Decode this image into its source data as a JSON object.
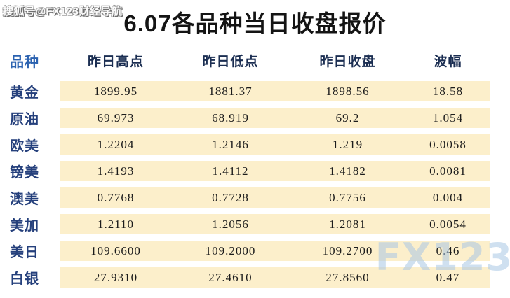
{
  "watermarks": {
    "sohu": "搜狐号@FX123财经导航",
    "logo": "FX123"
  },
  "title": "6.07各品种当日收盘报价",
  "chart_data": {
    "type": "table",
    "title": "6.07各品种当日收盘报价",
    "columns": [
      "品种",
      "昨日高点",
      "昨日低点",
      "昨日收盘",
      "波幅"
    ],
    "rows": [
      {
        "name": "黄金",
        "high": "1899.95",
        "low": "1881.37",
        "close": "1898.56",
        "range": "18.58"
      },
      {
        "name": "原油",
        "high": "69.973",
        "low": "68.919",
        "close": "69.2",
        "range": "1.054"
      },
      {
        "name": "欧美",
        "high": "1.2204",
        "low": "1.2146",
        "close": "1.219",
        "range": "0.0058"
      },
      {
        "name": "镑美",
        "high": "1.4193",
        "low": "1.4112",
        "close": "1.4182",
        "range": "0.0081"
      },
      {
        "name": "澳美",
        "high": "0.7768",
        "low": "0.7728",
        "close": "0.7756",
        "range": "0.004"
      },
      {
        "name": "美加",
        "high": "1.2110",
        "low": "1.2056",
        "close": "1.2081",
        "range": "0.0054"
      },
      {
        "name": "美日",
        "high": "109.6600",
        "low": "109.2000",
        "close": "109.2700",
        "range": "0.46"
      },
      {
        "name": "白银",
        "high": "27.9310",
        "low": "27.4610",
        "close": "27.8560",
        "range": "0.47"
      }
    ]
  },
  "colors": {
    "row_background": "#fcefcb",
    "title_text": "#141414",
    "variety_header_blue": "#2b62b0",
    "column_header_navy": "#1b2e52",
    "row_label_navy": "#25407c",
    "number_text": "#1c1c1c",
    "logo_watermark_blue": "#a9c7e5"
  }
}
